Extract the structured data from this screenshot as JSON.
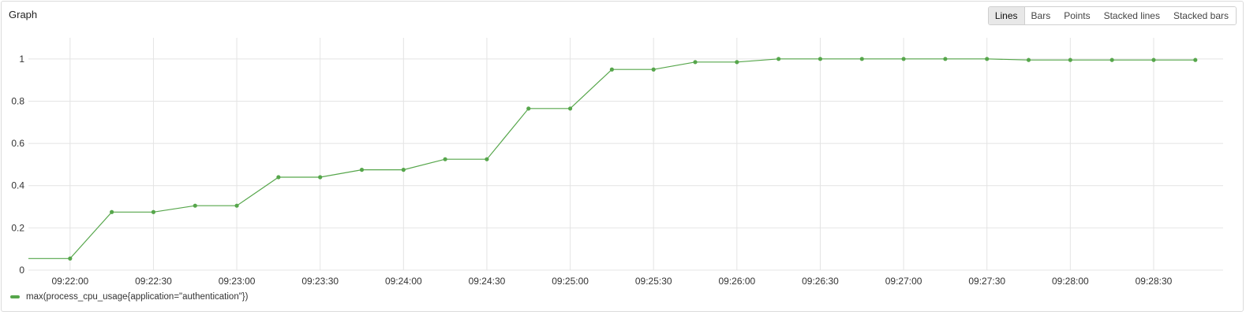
{
  "panel": {
    "title": "Graph",
    "modes": [
      {
        "label": "Lines",
        "active": true
      },
      {
        "label": "Bars",
        "active": false
      },
      {
        "label": "Points",
        "active": false
      },
      {
        "label": "Stacked lines",
        "active": false
      },
      {
        "label": "Stacked bars",
        "active": false
      }
    ]
  },
  "colors": {
    "series": "#56a64b",
    "grid": "#e4e4e4",
    "axis_text": "#333333"
  },
  "chart_data": {
    "type": "line",
    "title": "",
    "xlabel": "",
    "ylabel": "",
    "ylim": [
      0,
      1.1
    ],
    "xlim": [
      "09:21:45",
      "09:28:55"
    ],
    "grid": true,
    "legend_position": "bottom-left",
    "y_ticks": [
      "0",
      "0.2",
      "0.4",
      "0.6",
      "0.8",
      "1"
    ],
    "x_ticks": [
      "09:22:00",
      "09:22:30",
      "09:23:00",
      "09:23:30",
      "09:24:00",
      "09:24:30",
      "09:25:00",
      "09:25:30",
      "09:26:00",
      "09:26:30",
      "09:27:00",
      "09:27:30",
      "09:28:00",
      "09:28:30"
    ],
    "series": [
      {
        "name": "max(process_cpu_usage{application=\"authentication\"})",
        "x": [
          "09:21:45",
          "09:22:00",
          "09:22:15",
          "09:22:30",
          "09:22:45",
          "09:23:00",
          "09:23:15",
          "09:23:30",
          "09:23:45",
          "09:24:00",
          "09:24:15",
          "09:24:30",
          "09:24:45",
          "09:25:00",
          "09:25:15",
          "09:25:30",
          "09:25:45",
          "09:26:00",
          "09:26:15",
          "09:26:30",
          "09:26:45",
          "09:27:00",
          "09:27:15",
          "09:27:30",
          "09:27:45",
          "09:28:00",
          "09:28:15",
          "09:28:30",
          "09:28:45"
        ],
        "values": [
          0.055,
          0.055,
          0.275,
          0.275,
          0.305,
          0.305,
          0.44,
          0.44,
          0.475,
          0.475,
          0.525,
          0.525,
          0.765,
          0.765,
          0.95,
          0.95,
          0.985,
          0.985,
          1.0,
          1.0,
          1.0,
          1.0,
          1.0,
          1.0,
          0.995,
          0.995,
          0.995,
          0.995,
          0.995
        ],
        "markers_from_index": 1
      }
    ]
  }
}
